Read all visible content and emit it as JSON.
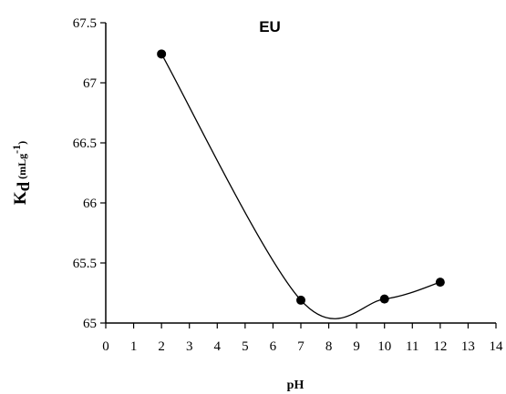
{
  "chart_data": {
    "type": "scatter",
    "title": "EU",
    "xlabel": "pH",
    "ylabel": {
      "main": "K",
      "subscript": "d",
      "unit_open": " (mLg",
      "unit_sup": "-1",
      "unit_close": ")"
    },
    "xlim": [
      0,
      14
    ],
    "ylim": [
      65,
      67.5
    ],
    "xticks": [
      "0",
      "1",
      "2",
      "3",
      "4",
      "5",
      "6",
      "7",
      "8",
      "9",
      "10",
      "11",
      "12",
      "13",
      "14"
    ],
    "yticks": [
      "65",
      "65.5",
      "66",
      "66.5",
      "67",
      "67.5"
    ],
    "grid": false,
    "series": [
      {
        "x": [
          2,
          7,
          10,
          12
        ],
        "y": [
          67.24,
          65.19,
          65.2,
          65.34
        ],
        "marker": "circle",
        "line": "smoothed"
      }
    ],
    "colors": {
      "line": "#000000",
      "marker": "#000000"
    }
  }
}
